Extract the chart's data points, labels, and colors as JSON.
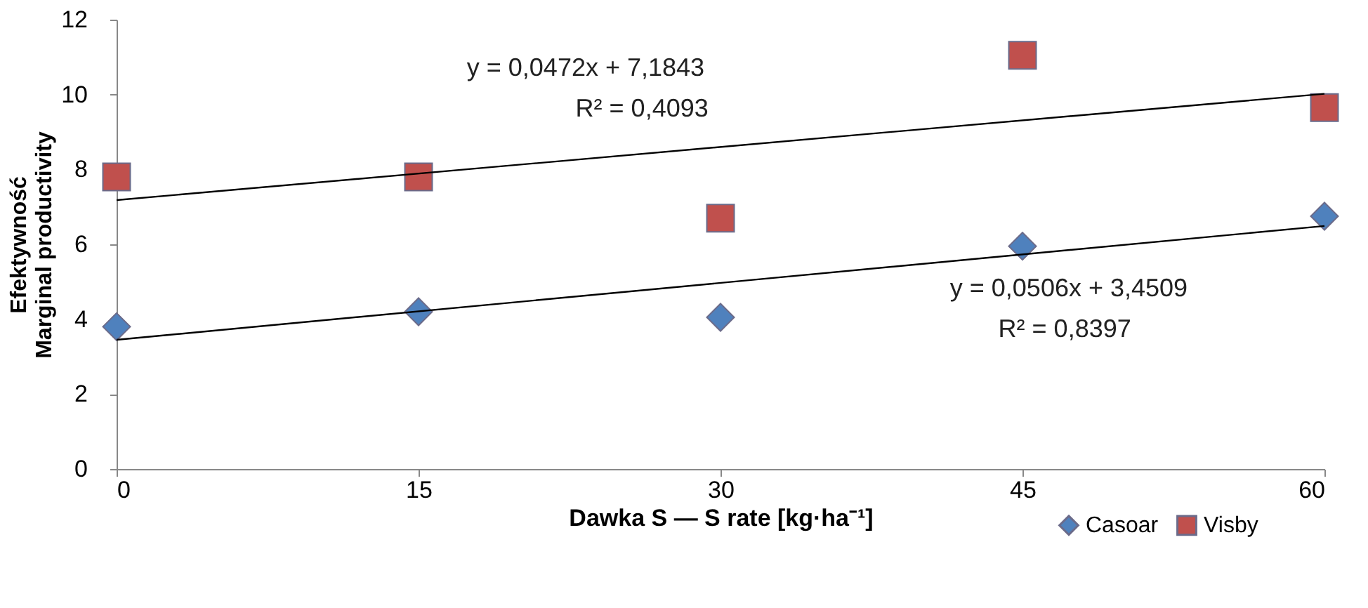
{
  "chart_data": {
    "type": "scatter",
    "xlabel": "Dawka S — S rate [kg·ha⁻¹]",
    "ylabel": "Efektywność\nMarginal productivity",
    "xlim": [
      0,
      60
    ],
    "xticks": [
      0,
      15,
      30,
      45,
      60
    ],
    "ylim": [
      0,
      12
    ],
    "yticks": [
      0,
      2,
      4,
      6,
      8,
      10,
      12
    ],
    "grid": false,
    "legend": "bottom right",
    "series": [
      {
        "name": "Casoar",
        "color": "#4f81bd",
        "marker": "diamond",
        "x": [
          0,
          15,
          30,
          45,
          60
        ],
        "values": [
          3.8,
          4.2,
          4.05,
          5.95,
          6.75
        ]
      },
      {
        "name": "Visby",
        "color": "#c0504d",
        "marker": "square",
        "x": [
          0,
          15,
          30,
          45,
          60
        ],
        "values": [
          7.8,
          7.8,
          6.7,
          11.05,
          9.65
        ]
      },
      {
        "type": "line",
        "color": "#000000",
        "x": [
          0,
          60
        ],
        "values": [
          7.18,
          10.02
        ]
      },
      {
        "type": "line",
        "color": "#000000",
        "x": [
          0,
          60
        ],
        "values": [
          3.45,
          6.49
        ]
      }
    ],
    "annotations": [
      "y = 0,0472x + 7,1843",
      "R² = 0,4093",
      "y = 0,0506x + 3,4509",
      "R² = 0,8397"
    ]
  }
}
